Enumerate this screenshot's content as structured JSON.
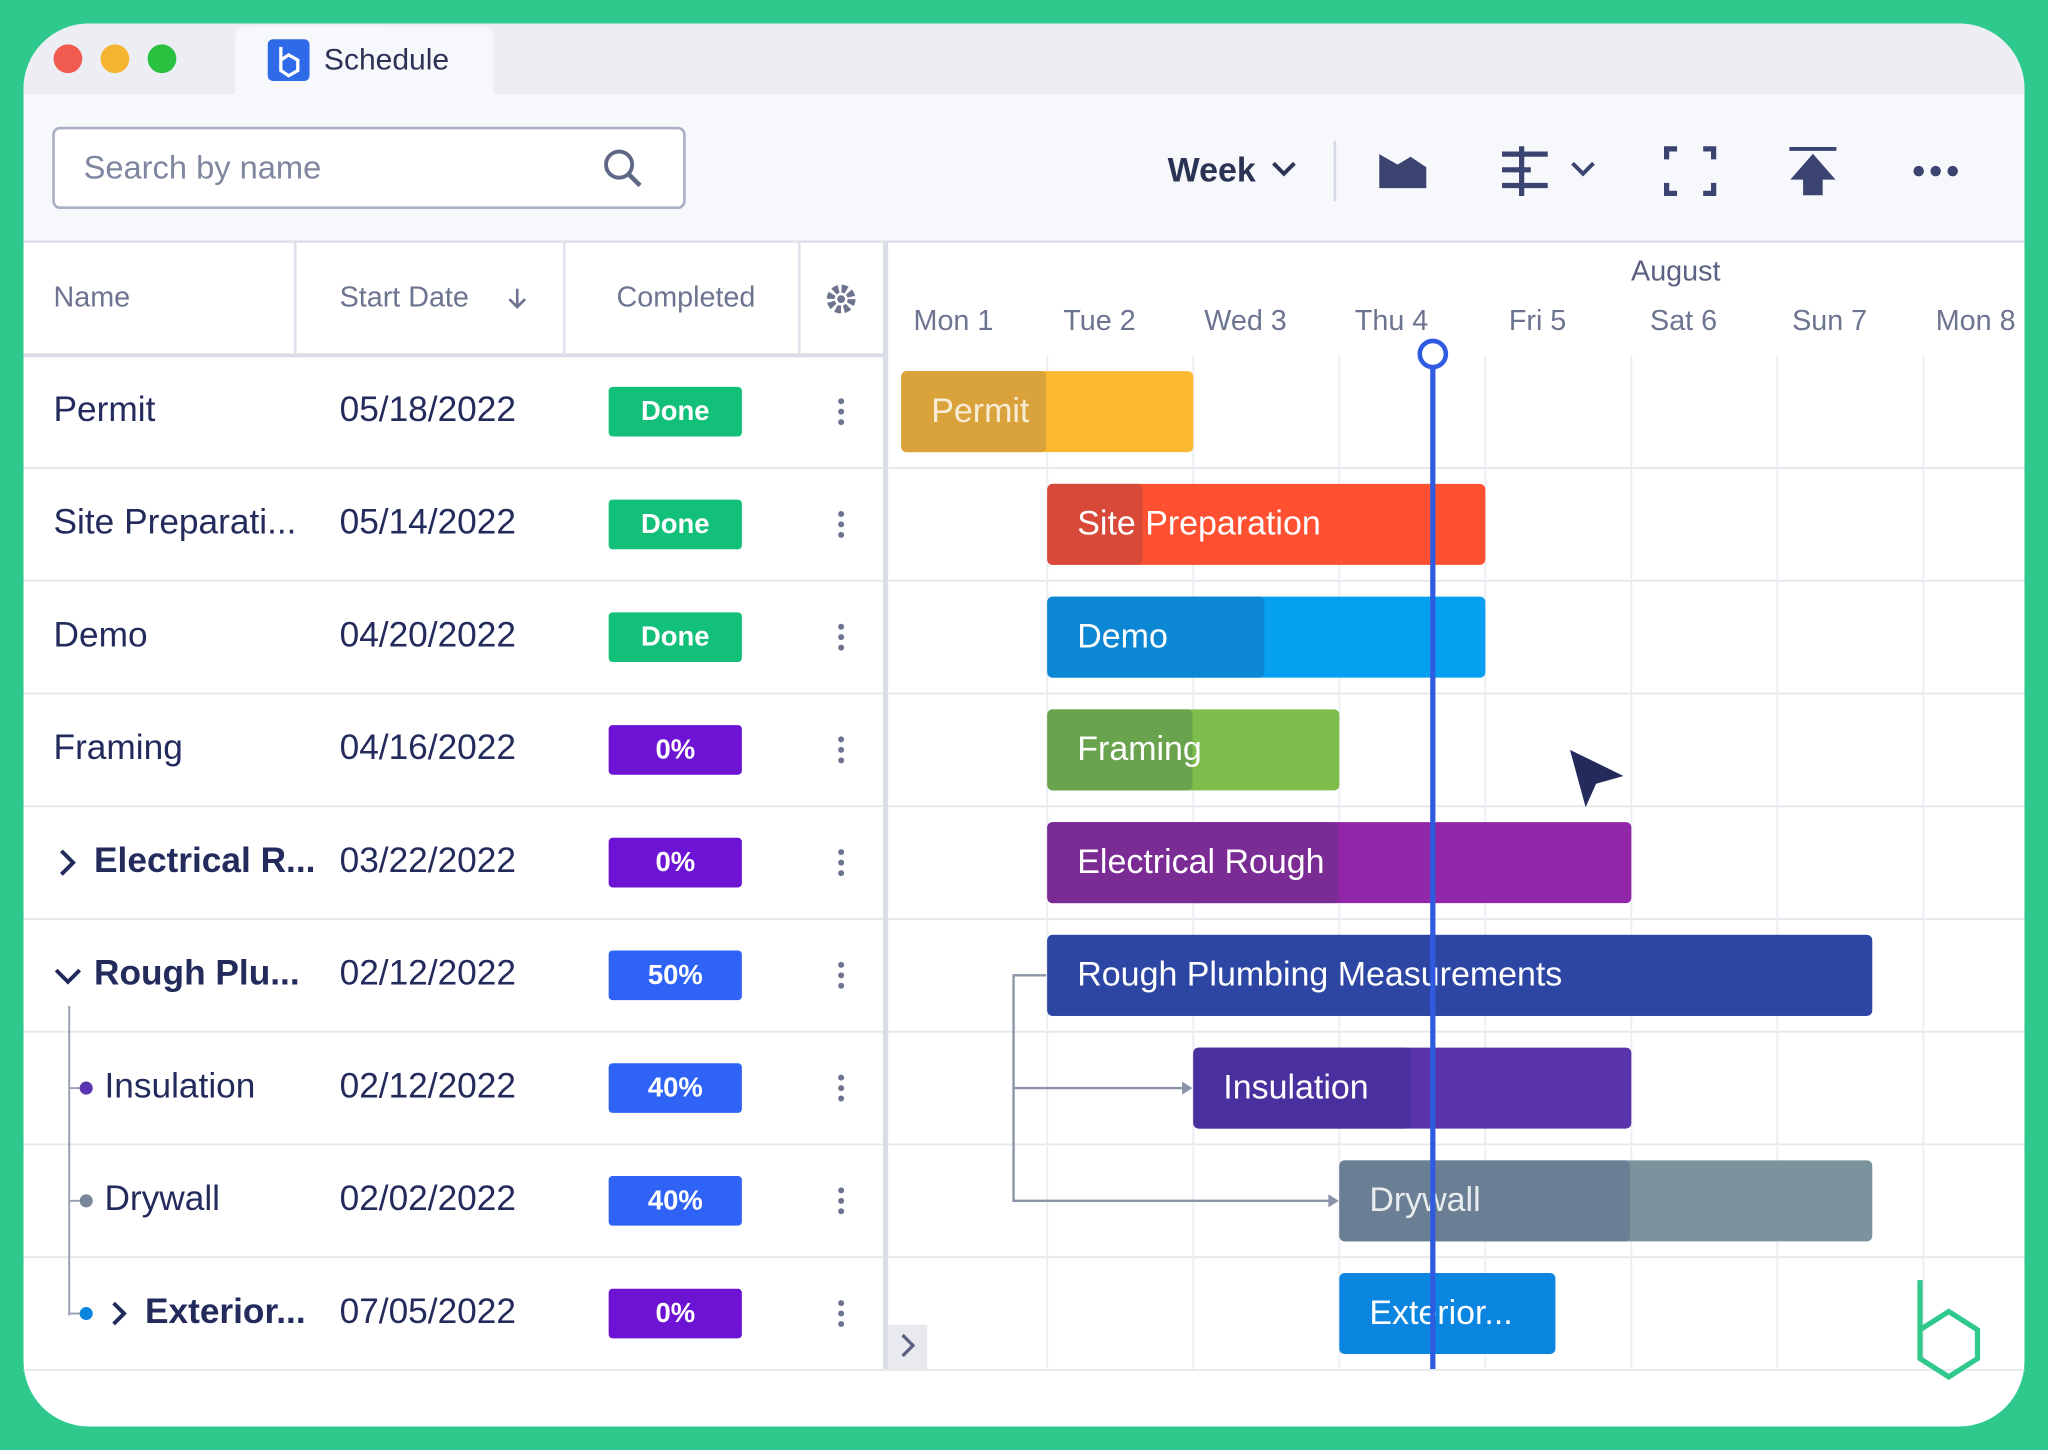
{
  "tab": {
    "title": "Schedule"
  },
  "toolbar": {
    "search_placeholder": "Search by name",
    "view": "Week"
  },
  "table": {
    "columns": [
      "Name",
      "Start Date",
      "Completed"
    ],
    "rows": [
      {
        "name": "Permit",
        "start_date": "05/18/2022",
        "completed": "Done",
        "bar_label": "Permit"
      },
      {
        "name": "Site Preparati...",
        "start_date": "05/14/2022",
        "completed": "Done",
        "bar_label": "Site Preparation"
      },
      {
        "name": "Demo",
        "start_date": "04/20/2022",
        "completed": "Done",
        "bar_label": "Demo"
      },
      {
        "name": "Framing",
        "start_date": "04/16/2022",
        "completed": "0%",
        "bar_label": "Framing"
      },
      {
        "name": "Electrical R...",
        "start_date": "03/22/2022",
        "completed": "0%",
        "bar_label": "Electrical Rough"
      },
      {
        "name": "Rough Plu...",
        "start_date": "02/12/2022",
        "completed": "50%",
        "bar_label": "Rough Plumbing Measurements"
      },
      {
        "name": "Insulation",
        "start_date": "02/12/2022",
        "completed": "40%",
        "bar_label": "Insulation"
      },
      {
        "name": "Drywall",
        "start_date": "02/02/2022",
        "completed": "40%",
        "bar_label": "Drywall"
      },
      {
        "name": "Exterior...",
        "start_date": "07/05/2022",
        "completed": "0%",
        "bar_label": "Exterior..."
      }
    ]
  },
  "gantt": {
    "month": "August",
    "days": [
      "Mon 1",
      "Tue 2",
      "Wed 3",
      "Thu 4",
      "Fri 5",
      "Sat 6",
      "Sun 7",
      "Mon 8"
    ]
  }
}
